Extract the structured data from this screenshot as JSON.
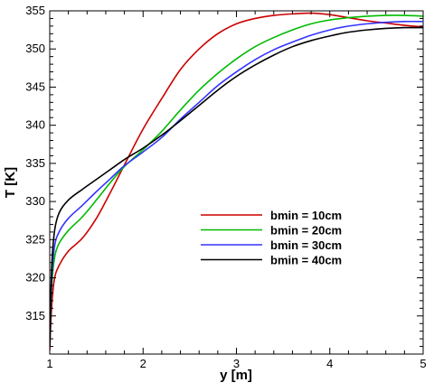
{
  "chart_data": {
    "type": "line",
    "title": "",
    "xlabel": "y [m]",
    "ylabel": "T [K]",
    "xlim": [
      1,
      5
    ],
    "ylim": [
      310,
      355
    ],
    "xticks": [
      1,
      2,
      3,
      4,
      5
    ],
    "yticks": [
      315,
      320,
      325,
      330,
      335,
      340,
      345,
      350,
      355
    ],
    "grid": false,
    "legend_position": "center-right",
    "series": [
      {
        "name": "bmin = 10cm",
        "color": "#cc0000",
        "points": [
          [
            1.0,
            310.5
          ],
          [
            1.02,
            316.0
          ],
          [
            1.05,
            319.8
          ],
          [
            1.1,
            321.6
          ],
          [
            1.2,
            323.5
          ],
          [
            1.35,
            325.2
          ],
          [
            1.5,
            327.8
          ],
          [
            1.65,
            331.2
          ],
          [
            1.8,
            334.8
          ],
          [
            2.0,
            339.5
          ],
          [
            2.2,
            343.5
          ],
          [
            2.4,
            347.3
          ],
          [
            2.6,
            350.0
          ],
          [
            2.8,
            352.0
          ],
          [
            3.0,
            353.3
          ],
          [
            3.2,
            354.0
          ],
          [
            3.4,
            354.4
          ],
          [
            3.6,
            354.6
          ],
          [
            3.8,
            354.7
          ],
          [
            4.0,
            354.5
          ],
          [
            4.2,
            354.1
          ],
          [
            4.4,
            353.7
          ],
          [
            4.6,
            353.4
          ],
          [
            4.8,
            353.1
          ],
          [
            5.0,
            352.9
          ]
        ]
      },
      {
        "name": "bmin = 20cm",
        "color": "#00bb00",
        "points": [
          [
            1.0,
            311.0
          ],
          [
            1.02,
            318.5
          ],
          [
            1.05,
            322.5
          ],
          [
            1.1,
            324.5
          ],
          [
            1.2,
            326.2
          ],
          [
            1.35,
            328.0
          ],
          [
            1.5,
            330.2
          ],
          [
            1.65,
            332.5
          ],
          [
            1.8,
            334.6
          ],
          [
            2.0,
            336.8
          ],
          [
            2.2,
            339.2
          ],
          [
            2.4,
            342.0
          ],
          [
            2.6,
            344.6
          ],
          [
            2.8,
            346.8
          ],
          [
            3.0,
            348.7
          ],
          [
            3.2,
            350.3
          ],
          [
            3.4,
            351.5
          ],
          [
            3.6,
            352.5
          ],
          [
            3.8,
            353.3
          ],
          [
            4.0,
            353.8
          ],
          [
            4.2,
            354.1
          ],
          [
            4.4,
            354.3
          ],
          [
            4.6,
            354.4
          ],
          [
            4.8,
            354.4
          ],
          [
            5.0,
            354.3
          ]
        ]
      },
      {
        "name": "bmin = 30cm",
        "color": "#3333ff",
        "points": [
          [
            1.0,
            311.0
          ],
          [
            1.02,
            319.5
          ],
          [
            1.05,
            324.0
          ],
          [
            1.1,
            326.0
          ],
          [
            1.2,
            327.8
          ],
          [
            1.35,
            329.5
          ],
          [
            1.5,
            331.3
          ],
          [
            1.65,
            333.0
          ],
          [
            1.8,
            334.7
          ],
          [
            2.0,
            336.5
          ],
          [
            2.2,
            338.4
          ],
          [
            2.4,
            340.8
          ],
          [
            2.6,
            343.0
          ],
          [
            2.8,
            345.2
          ],
          [
            3.0,
            347.0
          ],
          [
            3.2,
            348.6
          ],
          [
            3.4,
            349.9
          ],
          [
            3.6,
            350.9
          ],
          [
            3.8,
            351.8
          ],
          [
            4.0,
            352.5
          ],
          [
            4.2,
            353.0
          ],
          [
            4.4,
            353.3
          ],
          [
            4.6,
            353.5
          ],
          [
            4.8,
            353.6
          ],
          [
            5.0,
            353.6
          ]
        ]
      },
      {
        "name": "bmin = 40cm",
        "color": "#000000",
        "points": [
          [
            1.0,
            311.0
          ],
          [
            1.02,
            321.0
          ],
          [
            1.05,
            326.0
          ],
          [
            1.1,
            328.5
          ],
          [
            1.2,
            330.2
          ],
          [
            1.35,
            331.6
          ],
          [
            1.5,
            332.9
          ],
          [
            1.65,
            334.2
          ],
          [
            1.8,
            335.5
          ],
          [
            2.0,
            337.0
          ],
          [
            2.2,
            338.7
          ],
          [
            2.4,
            340.6
          ],
          [
            2.6,
            342.6
          ],
          [
            2.8,
            344.6
          ],
          [
            3.0,
            346.4
          ],
          [
            3.2,
            347.9
          ],
          [
            3.4,
            349.2
          ],
          [
            3.6,
            350.3
          ],
          [
            3.8,
            351.1
          ],
          [
            4.0,
            351.7
          ],
          [
            4.2,
            352.2
          ],
          [
            4.4,
            352.5
          ],
          [
            4.6,
            352.7
          ],
          [
            4.8,
            352.8
          ],
          [
            5.0,
            352.8
          ]
        ]
      }
    ]
  }
}
